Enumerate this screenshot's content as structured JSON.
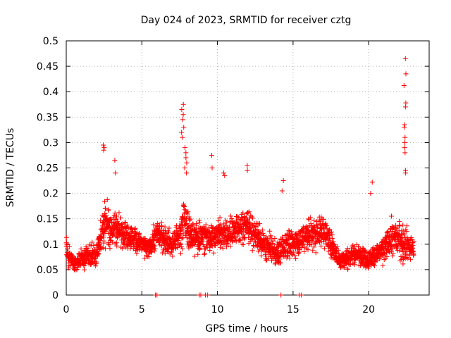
{
  "chart_data": {
    "type": "scatter",
    "title": "Day 024 of 2023, SRMTID for receiver cztg",
    "xlabel": "GPS time / hours",
    "ylabel": "SRMTID / TECUs",
    "xlim": [
      0,
      24
    ],
    "ylim": [
      0,
      0.5
    ],
    "xticks": [
      0,
      5,
      10,
      15,
      20
    ],
    "xtick_labels": [
      "0",
      "5",
      "10",
      "15",
      "20"
    ],
    "yticks": [
      0,
      0.05,
      0.1,
      0.15,
      0.2,
      0.25,
      0.3,
      0.35,
      0.4,
      0.45,
      0.5
    ],
    "ytick_labels": [
      "0",
      "0.05",
      "0.1",
      "0.15",
      "0.2",
      "0.25",
      "0.3",
      "0.35",
      "0.4",
      "0.45",
      "0.5"
    ],
    "grid": true,
    "marker": "+",
    "color": "#ff0000",
    "series": [
      {
        "name": "SRMTID",
        "profile_note": "approximate envelope of dense scatter read from plot",
        "x": [
          0.0,
          0.3,
          0.6,
          1.0,
          1.5,
          2.0,
          2.3,
          2.6,
          3.0,
          3.5,
          4.0,
          4.5,
          5.0,
          5.5,
          6.0,
          6.5,
          7.0,
          7.5,
          7.8,
          8.0,
          8.5,
          9.0,
          9.5,
          10.0,
          10.5,
          11.0,
          11.5,
          12.0,
          12.5,
          13.0,
          13.5,
          14.0,
          14.5,
          15.0,
          15.5,
          16.0,
          16.5,
          17.0,
          17.5,
          18.0,
          18.5,
          19.0,
          19.5,
          20.0,
          20.5,
          21.0,
          21.5,
          22.0,
          22.3,
          22.6,
          23.0
        ],
        "y_center": [
          0.09,
          0.07,
          0.06,
          0.07,
          0.08,
          0.08,
          0.12,
          0.14,
          0.13,
          0.13,
          0.12,
          0.11,
          0.1,
          0.09,
          0.12,
          0.11,
          0.1,
          0.12,
          0.15,
          0.13,
          0.11,
          0.12,
          0.11,
          0.12,
          0.12,
          0.13,
          0.13,
          0.14,
          0.12,
          0.1,
          0.09,
          0.08,
          0.1,
          0.1,
          0.11,
          0.12,
          0.12,
          0.13,
          0.1,
          0.07,
          0.07,
          0.08,
          0.08,
          0.07,
          0.08,
          0.09,
          0.11,
          0.11,
          0.1,
          0.1,
          0.09
        ],
        "y_spread": [
          0.04,
          0.03,
          0.02,
          0.03,
          0.03,
          0.03,
          0.05,
          0.06,
          0.05,
          0.05,
          0.04,
          0.04,
          0.03,
          0.03,
          0.04,
          0.04,
          0.04,
          0.05,
          0.08,
          0.06,
          0.05,
          0.05,
          0.04,
          0.04,
          0.05,
          0.05,
          0.05,
          0.05,
          0.04,
          0.04,
          0.04,
          0.04,
          0.04,
          0.04,
          0.04,
          0.05,
          0.05,
          0.05,
          0.04,
          0.03,
          0.03,
          0.03,
          0.03,
          0.03,
          0.03,
          0.04,
          0.05,
          0.05,
          0.06,
          0.05,
          0.03
        ],
        "spikes": [
          {
            "x": 2.5,
            "y": [
              0.29,
              0.295,
              0.285
            ]
          },
          {
            "x": 3.2,
            "y": [
              0.265,
              0.24
            ]
          },
          {
            "x": 7.7,
            "y": [
              0.375,
              0.365,
              0.355,
              0.345,
              0.33,
              0.32,
              0.31
            ]
          },
          {
            "x": 7.9,
            "y": [
              0.29,
              0.28,
              0.27,
              0.26,
              0.25,
              0.24
            ]
          },
          {
            "x": 9.6,
            "y": [
              0.275,
              0.25
            ]
          },
          {
            "x": 10.4,
            "y": [
              0.24,
              0.235
            ]
          },
          {
            "x": 12.0,
            "y": [
              0.255,
              0.245
            ]
          },
          {
            "x": 14.3,
            "y": [
              0.225,
              0.205
            ]
          },
          {
            "x": 20.2,
            "y": [
              0.222,
              0.2
            ]
          },
          {
            "x": 22.4,
            "y": [
              0.465,
              0.435,
              0.412,
              0.378,
              0.37,
              0.335,
              0.33,
              0.31,
              0.3,
              0.29,
              0.28,
              0.245,
              0.24
            ]
          }
        ],
        "zero_points_x": [
          5.9,
          6.0,
          8.8,
          8.9,
          9.2,
          9.35,
          14.2,
          15.4,
          15.55
        ]
      }
    ]
  }
}
